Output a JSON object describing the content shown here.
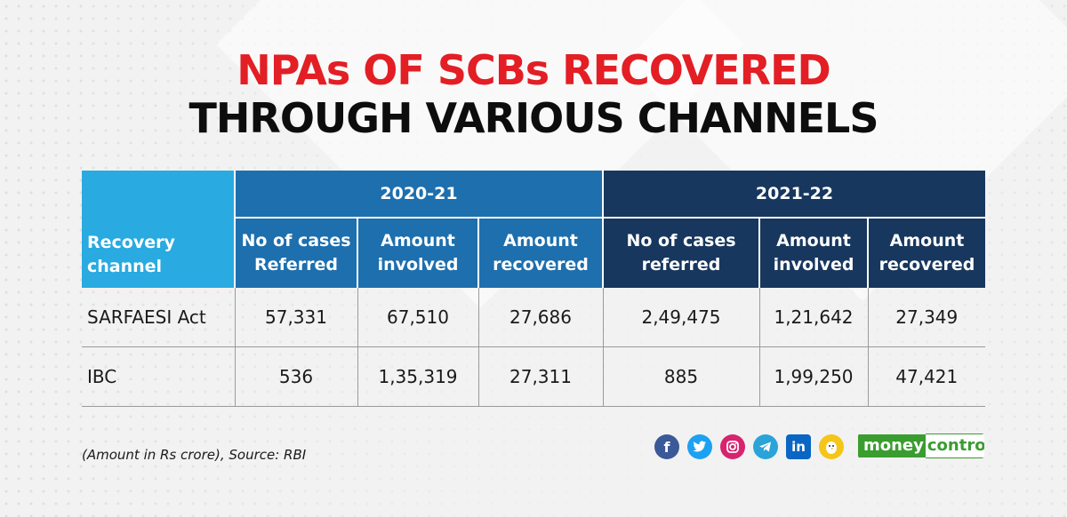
{
  "title": {
    "line1": "NPAs OF SCBs RECOVERED",
    "line2": "THROUGH VARIOUS CHANNELS"
  },
  "table": {
    "row_header": "Recovery channel",
    "years": [
      "2020-21",
      "2021-22"
    ],
    "columns_2020": [
      "No of cases Referred",
      "Amount involved",
      "Amount recovered"
    ],
    "columns_2021": [
      "No of cases referred",
      "Amount involved",
      "Amount recovered"
    ],
    "rows": [
      {
        "channel": "SARFAESI Act",
        "values": [
          "57,331",
          "67,510",
          "27,686",
          "2,49,475",
          "1,21,642",
          "27,349"
        ]
      },
      {
        "channel": "IBC",
        "values": [
          "536",
          "1,35,319",
          "27,311",
          "885",
          "1,99,250",
          "47,421"
        ]
      }
    ]
  },
  "footer": {
    "source": "(Amount in Rs crore), Source: RBI",
    "social_icons": [
      "facebook-icon",
      "twitter-icon",
      "instagram-icon",
      "telegram-icon",
      "linkedin-icon",
      "koo-icon"
    ],
    "brand_part1": "money",
    "brand_part2": "control"
  },
  "colors": {
    "title_red": "#e31e24",
    "header_light_blue": "#29aae1",
    "header_2020": "#1d6fae",
    "header_2021": "#17375e",
    "brand_green": "#3a9d2f"
  }
}
